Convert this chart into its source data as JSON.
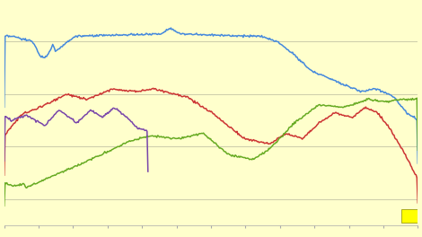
{
  "background_color": "#ffffcc",
  "grid_color": "#ccccaa",
  "line_colors": {
    "blue": "#4488dd",
    "red": "#cc3333",
    "green": "#66aa22",
    "purple": "#7744aa"
  },
  "n_points": 470,
  "ylim": [
    0.0,
    1.0
  ]
}
